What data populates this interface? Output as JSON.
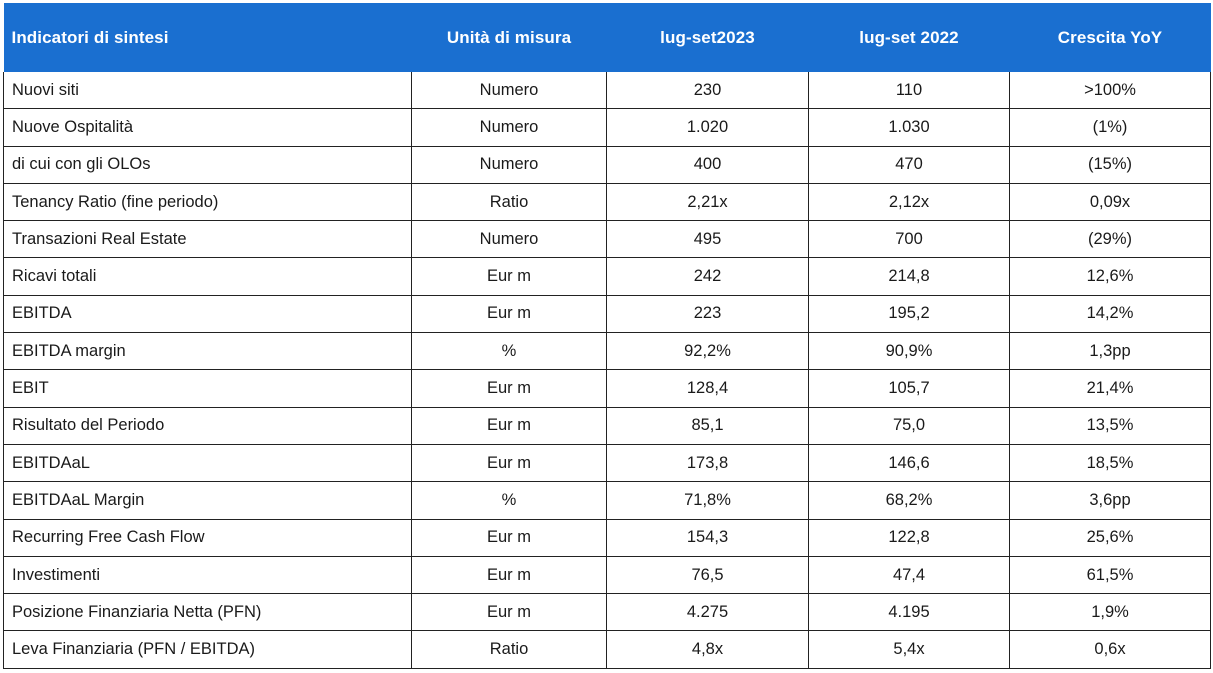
{
  "header": {
    "col1": "Indicatori di sintesi",
    "col2": "Unità di misura",
    "col3": "lug-set2023",
    "col4": "lug-set 2022",
    "col5": "Crescita YoY"
  },
  "rows": [
    {
      "label": "Nuovi siti",
      "unit": "Numero",
      "y2023": "230",
      "y2022": "110",
      "growth": ">100%"
    },
    {
      "label": "Nuove Ospitalità",
      "unit": "Numero",
      "y2023": "1.020",
      "y2022": "1.030",
      "growth": "(1%)"
    },
    {
      "label": "di cui con gli OLOs",
      "unit": "Numero",
      "y2023": "400",
      "y2022": "470",
      "growth": "(15%)"
    },
    {
      "label": "Tenancy Ratio (fine periodo)",
      "unit": "Ratio",
      "y2023": "2,21x",
      "y2022": "2,12x",
      "growth": "0,09x"
    },
    {
      "label": "Transazioni Real Estate",
      "unit": "Numero",
      "y2023": "495",
      "y2022": "700",
      "growth": "(29%)"
    },
    {
      "label": "Ricavi totali",
      "unit": "Eur m",
      "y2023": "242",
      "y2022": "214,8",
      "growth": "12,6%"
    },
    {
      "label": "EBITDA",
      "unit": "Eur m",
      "y2023": "223",
      "y2022": "195,2",
      "growth": "14,2%"
    },
    {
      "label": "EBITDA margin",
      "unit": "%",
      "y2023": "92,2%",
      "y2022": "90,9%",
      "growth": "1,3pp"
    },
    {
      "label": "EBIT",
      "unit": "Eur m",
      "y2023": "128,4",
      "y2022": "105,7",
      "growth": "21,4%"
    },
    {
      "label": "Risultato del Periodo",
      "unit": "Eur m",
      "y2023": "85,1",
      "y2022": "75,0",
      "growth": "13,5%"
    },
    {
      "label": "EBITDAaL",
      "unit": "Eur m",
      "y2023": "173,8",
      "y2022": "146,6",
      "growth": "18,5%"
    },
    {
      "label": "EBITDAaL Margin",
      "unit": "%",
      "y2023": "71,8%",
      "y2022": "68,2%",
      "growth": "3,6pp"
    },
    {
      "label": "Recurring Free Cash Flow",
      "unit": "Eur m",
      "y2023": "154,3",
      "y2022": "122,8",
      "growth": "25,6%"
    },
    {
      "label": "Investimenti",
      "unit": "Eur m",
      "y2023": "76,5",
      "y2022": "47,4",
      "growth": "61,5%"
    },
    {
      "label": "Posizione Finanziaria Netta (PFN)",
      "unit": "Eur m",
      "y2023": "4.275",
      "y2022": "4.195",
      "growth": "1,9%"
    },
    {
      "label": "Leva Finanziaria (PFN / EBITDA)",
      "unit": "Ratio",
      "y2023": "4,8x",
      "y2022": "5,4x",
      "growth": "0,6x"
    }
  ],
  "colors": {
    "header_bg": "#1a6fd0",
    "header_text": "#ffffff",
    "border": "#222222"
  }
}
